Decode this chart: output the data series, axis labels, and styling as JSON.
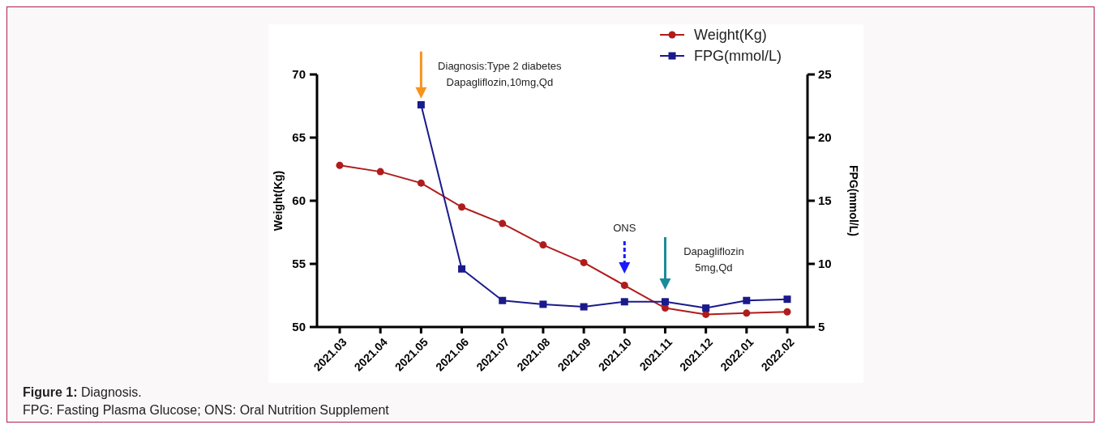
{
  "chart_data": {
    "type": "line",
    "title": "Figure 1: Diagnosis.",
    "ylabel": "Weight(Kg)",
    "y2label": "FPG(mmol/L)",
    "categories": [
      "2021.03",
      "2021.04",
      "2021.05",
      "2021.06",
      "2021.07",
      "2021.08",
      "2021.09",
      "2021.10",
      "2021.11",
      "2021.12",
      "2022.01",
      "2022.02"
    ],
    "series": [
      {
        "name": "Weight(Kg)",
        "color": "#b01c1c",
        "marker": "circle",
        "values": [
          62.8,
          62.3,
          61.4,
          59.5,
          58.2,
          56.5,
          55.1,
          53.3,
          51.5,
          51.0,
          51.1,
          51.2
        ]
      },
      {
        "name": "FPG(mmol/L)",
        "color": "#1a1a8c",
        "marker": "square",
        "axis": "y2",
        "values": [
          null,
          null,
          22.6,
          9.6,
          7.1,
          6.8,
          6.6,
          7.0,
          7.0,
          6.5,
          7.1,
          7.2
        ]
      }
    ],
    "ylim": [
      50,
      70
    ],
    "yticks": [
      50,
      55,
      60,
      65,
      70
    ],
    "y2lim": [
      5,
      25
    ],
    "y2ticks": [
      5,
      10,
      15,
      20,
      25
    ],
    "legend": "top right",
    "grid": false,
    "annotations": [
      {
        "text": "Diagnosis:Type 2 diabetes\nDapagliflozin,10mg,Qd",
        "x": "2021.05",
        "y": 68.1
      },
      "ONS",
      "Dapagliflozin\n5mg,Qd",
      "FPG: Fasting Plasma Glucose; ONS: Oral Nutrition Supplement"
    ]
  }
}
